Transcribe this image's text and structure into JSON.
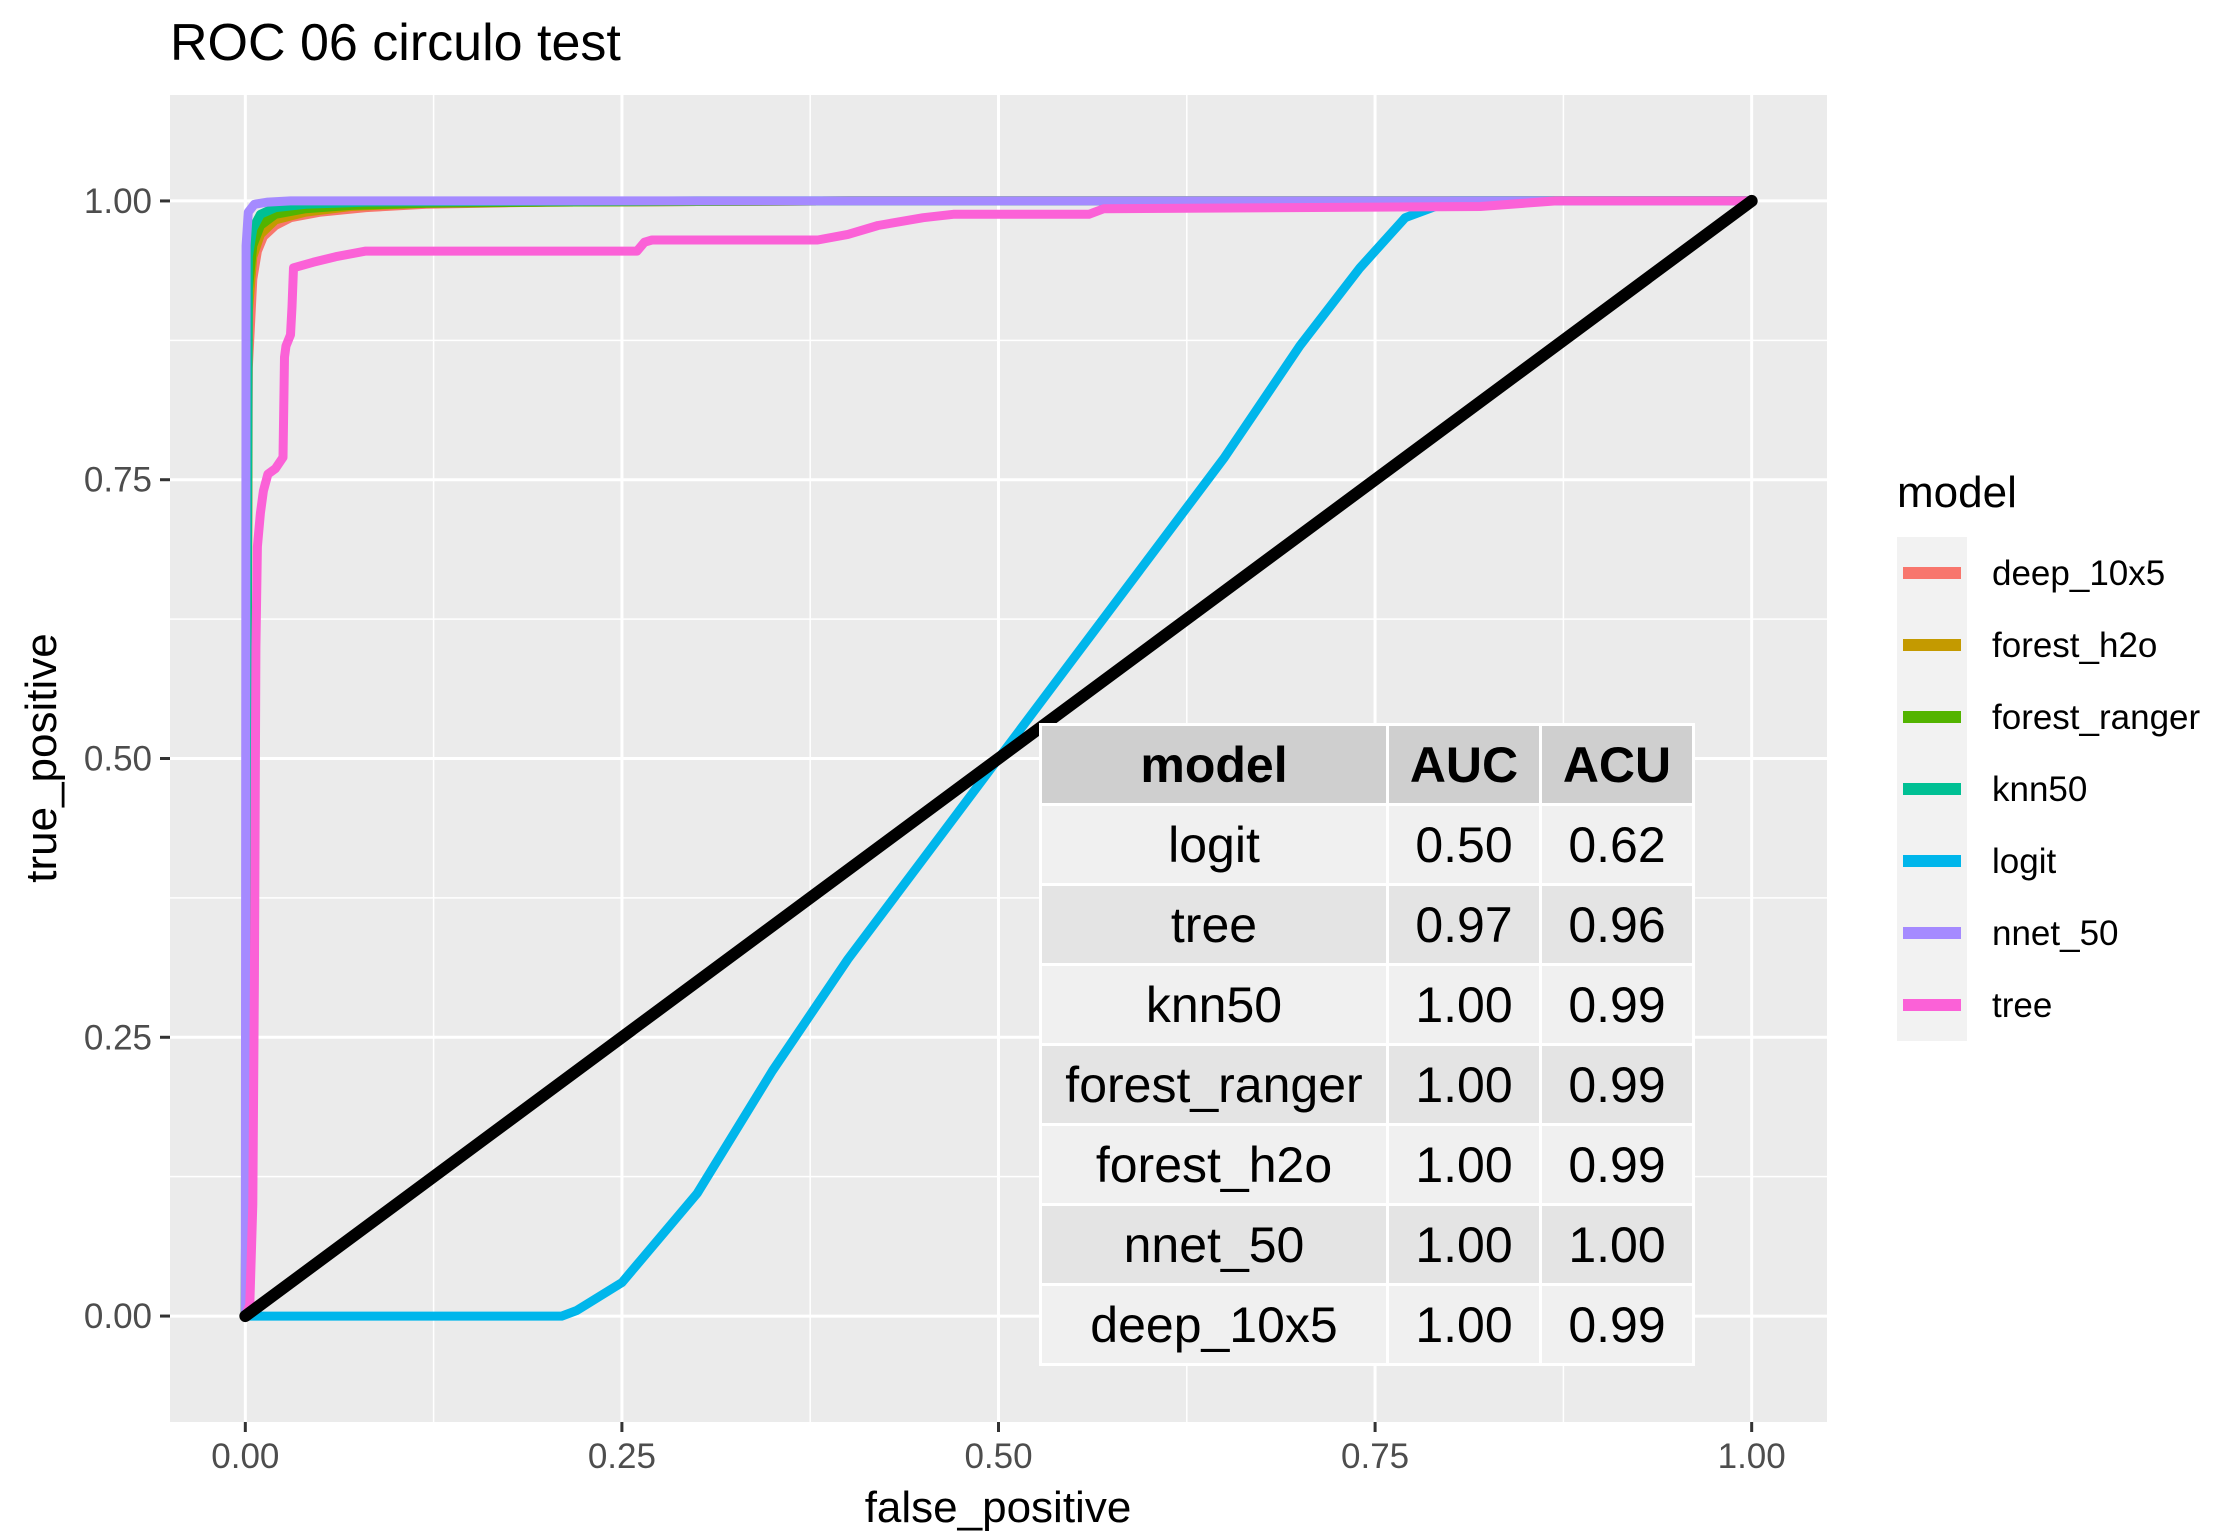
{
  "chart_data": {
    "type": "line",
    "title": "ROC 06 circulo test",
    "xlabel": "false_positive",
    "ylabel": "true_positive",
    "xlim": [
      -0.05,
      1.05
    ],
    "ylim": [
      -0.095,
      1.095
    ],
    "x_ticks": [
      0.0,
      0.25,
      0.5,
      0.75,
      1.0
    ],
    "x_tick_labels": [
      "0.00",
      "0.25",
      "0.50",
      "0.75",
      "1.00"
    ],
    "y_ticks": [
      0.0,
      0.25,
      0.5,
      0.75,
      1.0
    ],
    "y_tick_labels": [
      "0.00",
      "0.25",
      "0.50",
      "0.75",
      "1.00"
    ],
    "grid": true,
    "legend": {
      "title": "model",
      "position": "right"
    },
    "series": [
      {
        "name": "deep_10x5",
        "color": "#F8766D",
        "x": [
          0,
          0.002,
          0.005,
          0.008,
          0.012,
          0.02,
          0.03,
          0.05,
          0.08,
          0.12,
          0.2,
          0.4,
          1.0
        ],
        "y": [
          0,
          0.85,
          0.93,
          0.955,
          0.968,
          0.978,
          0.985,
          0.99,
          0.994,
          0.997,
          0.999,
          1.0,
          1.0
        ]
      },
      {
        "name": "forest_h2o",
        "color": "#C49A00",
        "x": [
          0,
          0.002,
          0.005,
          0.01,
          0.02,
          0.04,
          0.07,
          0.12,
          0.2,
          0.4,
          1.0
        ],
        "y": [
          0,
          0.9,
          0.95,
          0.97,
          0.983,
          0.99,
          0.995,
          0.998,
          0.999,
          1.0,
          1.0
        ]
      },
      {
        "name": "forest_ranger",
        "color": "#53B400",
        "x": [
          0,
          0.002,
          0.005,
          0.01,
          0.02,
          0.04,
          0.07,
          0.12,
          0.2,
          0.4,
          1.0
        ],
        "y": [
          0,
          0.92,
          0.96,
          0.978,
          0.988,
          0.993,
          0.996,
          0.998,
          0.999,
          1.0,
          1.0
        ]
      },
      {
        "name": "knn50",
        "color": "#00C094",
        "x": [
          0,
          0.002,
          0.005,
          0.01,
          0.02,
          0.04,
          0.08,
          0.15,
          0.3,
          1.0
        ],
        "y": [
          0,
          0.95,
          0.975,
          0.988,
          0.994,
          0.997,
          0.999,
          0.9995,
          1.0,
          1.0
        ]
      },
      {
        "name": "logit",
        "color": "#00B6EB",
        "x": [
          0,
          0.21,
          0.22,
          0.25,
          0.3,
          0.35,
          0.4,
          0.45,
          0.5,
          0.55,
          0.6,
          0.65,
          0.7,
          0.74,
          0.77,
          0.8,
          1.0
        ],
        "y": [
          0,
          0,
          0.005,
          0.03,
          0.11,
          0.22,
          0.32,
          0.41,
          0.5,
          0.59,
          0.68,
          0.77,
          0.87,
          0.94,
          0.985,
          1.0,
          1.0
        ]
      },
      {
        "name": "nnet_50",
        "color": "#A58AFF",
        "x": [
          0,
          0.0005,
          0.002,
          0.006,
          0.015,
          0.03,
          0.1,
          1.0
        ],
        "y": [
          0,
          0.96,
          0.99,
          0.997,
          0.999,
          1.0,
          1.0,
          1.0
        ]
      },
      {
        "name": "tree",
        "color": "#FB61D7",
        "x": [
          0,
          0.003,
          0.005,
          0.006,
          0.007,
          0.008,
          0.01,
          0.012,
          0.015,
          0.02,
          0.025,
          0.026,
          0.027,
          0.03,
          0.031,
          0.032,
          0.045,
          0.06,
          0.08,
          0.2,
          0.26,
          0.265,
          0.27,
          0.38,
          0.4,
          0.42,
          0.45,
          0.47,
          0.56,
          0.57,
          0.82,
          0.87,
          0.9,
          1.0
        ],
        "y": [
          0,
          0.01,
          0.1,
          0.3,
          0.6,
          0.69,
          0.72,
          0.74,
          0.755,
          0.76,
          0.77,
          0.86,
          0.87,
          0.88,
          0.905,
          0.94,
          0.945,
          0.95,
          0.955,
          0.955,
          0.955,
          0.963,
          0.965,
          0.965,
          0.97,
          0.978,
          0.985,
          0.988,
          0.988,
          0.993,
          0.995,
          1.0,
          1.0,
          1.0
        ]
      }
    ],
    "reference_line": {
      "x": [
        0,
        1
      ],
      "y": [
        0,
        1
      ],
      "color": "#000000"
    },
    "table": {
      "headers": [
        "model",
        "AUC",
        "ACU"
      ],
      "rows": [
        [
          "logit",
          "0.50",
          "0.62"
        ],
        [
          "tree",
          "0.97",
          "0.96"
        ],
        [
          "knn50",
          "1.00",
          "0.99"
        ],
        [
          "forest_ranger",
          "1.00",
          "0.99"
        ],
        [
          "forest_h2o",
          "1.00",
          "0.99"
        ],
        [
          "nnet_50",
          "1.00",
          "1.00"
        ],
        [
          "deep_10x5",
          "1.00",
          "0.99"
        ]
      ]
    }
  }
}
